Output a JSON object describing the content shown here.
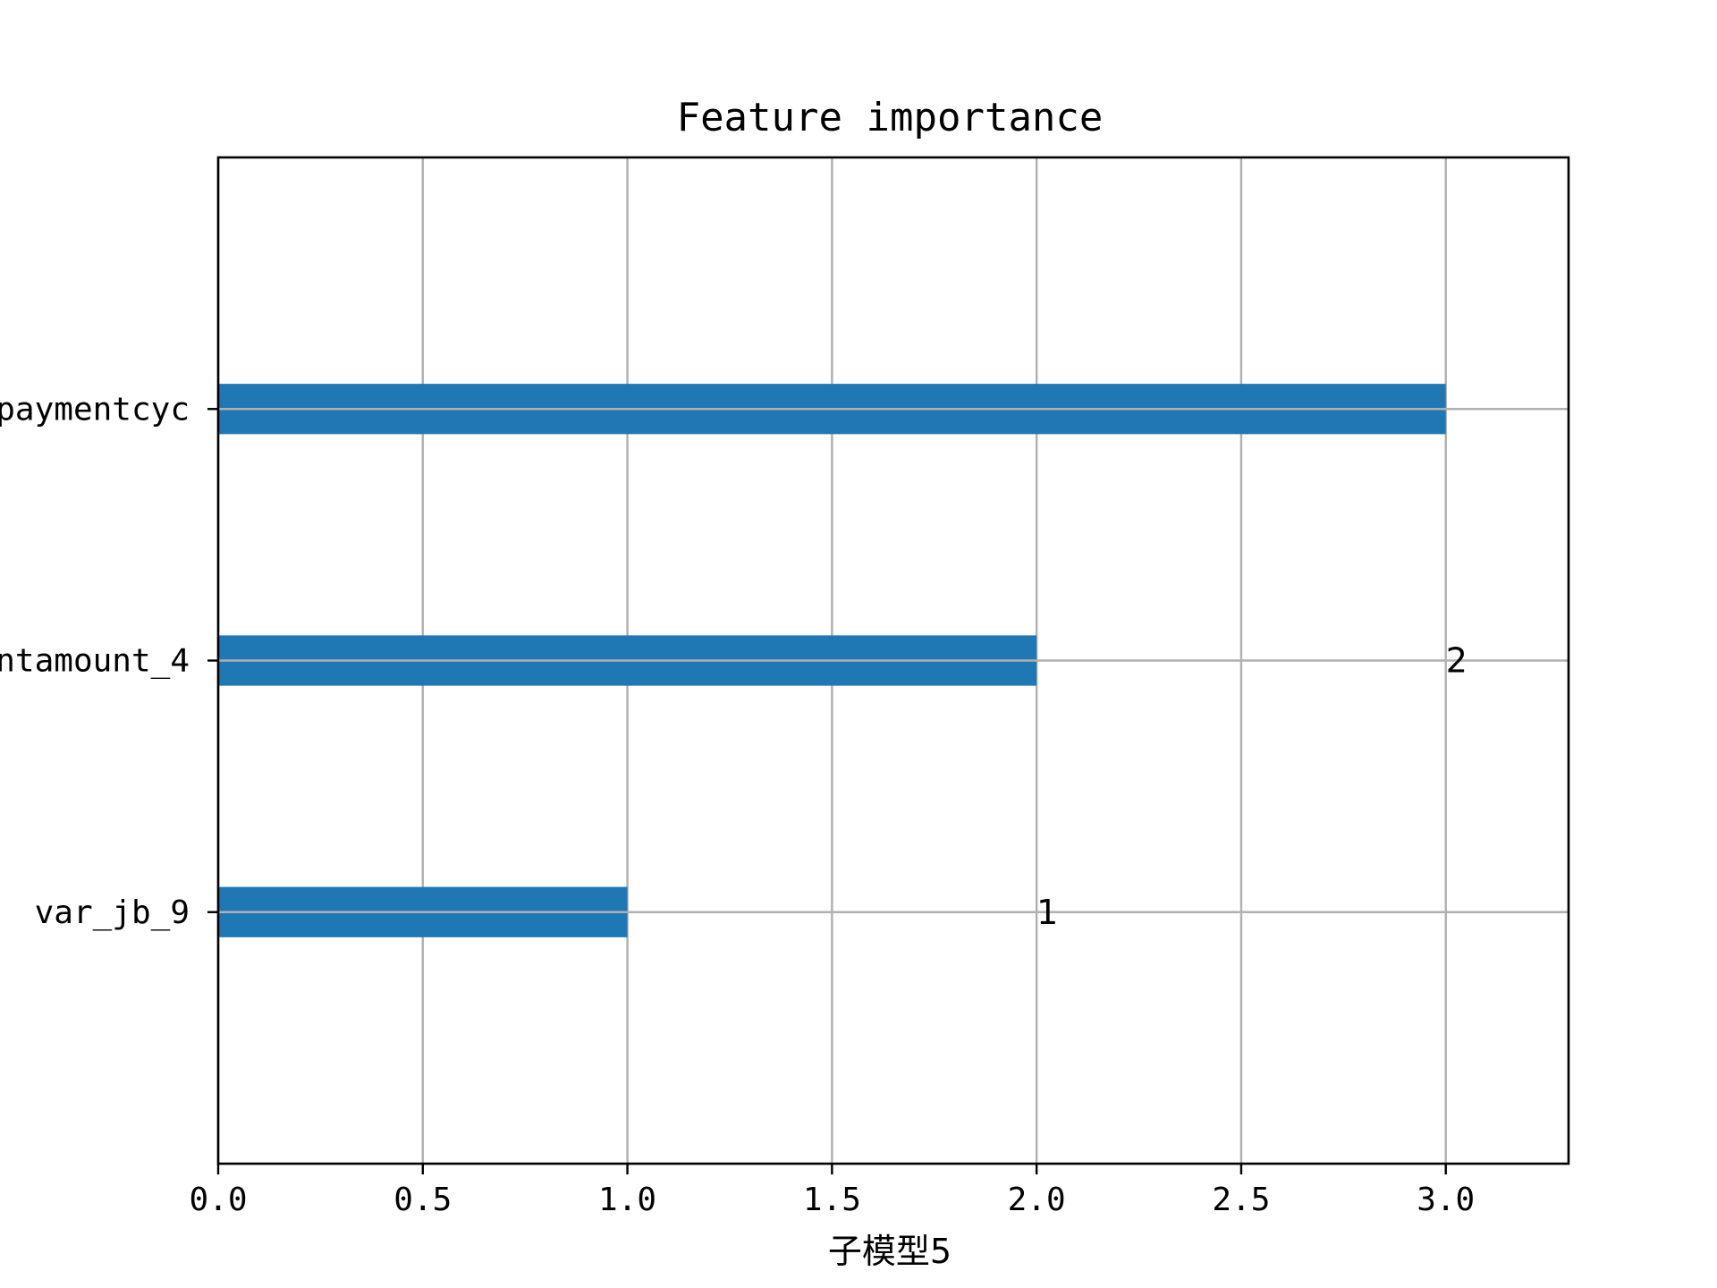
{
  "chart_data": {
    "type": "bar",
    "orientation": "horizontal",
    "title": "Feature importance",
    "xlabel": "子模型5",
    "ylabel": "",
    "categories": [
      "var_jb_9",
      "ntamount_4",
      "paymentcyc"
    ],
    "values": [
      1,
      2,
      3
    ],
    "data_labels": [
      "1",
      "2",
      "3"
    ],
    "xlim": [
      0,
      3.3
    ],
    "xticks": [
      0.0,
      0.5,
      1.0,
      1.5,
      2.0,
      2.5,
      3.0
    ],
    "xtick_labels": [
      "0.0",
      "0.5",
      "1.0",
      "1.5",
      "2.0",
      "2.5",
      "3.0"
    ],
    "ylim": [
      -1,
      3
    ],
    "grid": true,
    "bar_color": "#1f77b4",
    "grid_color": "#b0b0b0"
  }
}
